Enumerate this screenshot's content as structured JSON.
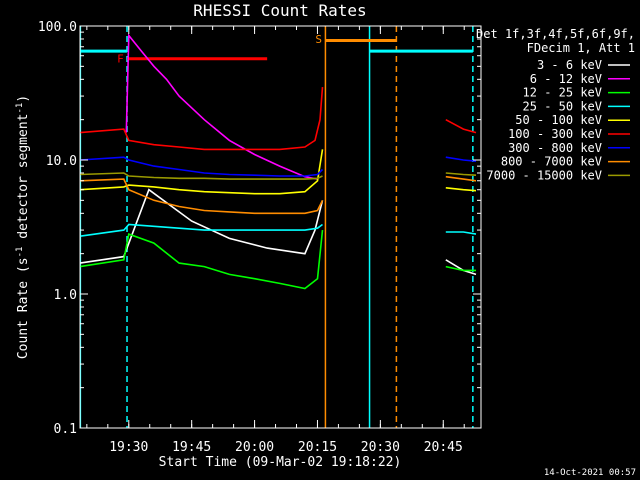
{
  "chart_data": {
    "type": "line",
    "title": "RHESSI Count Rates",
    "xlabel": "Start Time (09-Mar-02 19:18:22)",
    "ylabel": "Count Rate (s",
    "ylabel_sup": "-1",
    "ylabel_tail": " detector segment",
    "ylabel_sup2": "-1",
    "ylabel_end": ")",
    "yscale": "log",
    "ylim": [
      0.1,
      100
    ],
    "xlim": [
      19.3061,
      20.9
    ],
    "xticks": [
      {
        "label": "19:30",
        "value": 19.5
      },
      {
        "label": "19:45",
        "value": 19.75
      },
      {
        "label": "20:00",
        "value": 20.0
      },
      {
        "label": "20:15",
        "value": 20.25
      },
      {
        "label": "20:30",
        "value": 20.5
      },
      {
        "label": "20:45",
        "value": 20.75
      }
    ],
    "yticks": [
      {
        "label": "100.0",
        "value": 100
      },
      {
        "label": "10.0",
        "value": 10
      },
      {
        "label": "1.0",
        "value": 1
      },
      {
        "label": "0.1",
        "value": 0.1
      }
    ],
    "legend_header": [
      "Det 1f,3f,4f,5f,6f,9f,",
      "FDecim 1, Att 1"
    ],
    "legend_position": "right",
    "series": [
      {
        "name": "3 - 6 keV",
        "color": "#ffffff",
        "x": [
          19.306,
          19.48,
          19.58,
          19.75,
          19.9,
          20.05,
          20.2,
          20.24,
          20.27,
          20.28,
          20.76,
          20.83,
          20.88
        ],
        "y": [
          1.7,
          1.9,
          6.0,
          3.5,
          2.6,
          2.2,
          2.0,
          3.0,
          5.0,
          null,
          1.8,
          1.5,
          1.4
        ]
      },
      {
        "name": "6 - 12 keV",
        "color": "#ff00ff",
        "x": [
          19.49,
          19.5,
          19.55,
          19.6,
          19.65,
          19.7,
          19.8,
          19.9,
          20.0,
          20.1,
          20.2,
          20.25
        ],
        "y": [
          16,
          85,
          65,
          50,
          40,
          30,
          20,
          14,
          11,
          9,
          7.5,
          7.2
        ]
      },
      {
        "name": "12 - 25 keV",
        "color": "#00ff00",
        "x": [
          19.306,
          19.48,
          19.5,
          19.6,
          19.7,
          19.8,
          19.9,
          20.0,
          20.1,
          20.2,
          20.25,
          20.27,
          20.28,
          20.76,
          20.83,
          20.88
        ],
        "y": [
          1.6,
          1.8,
          2.8,
          2.4,
          1.7,
          1.6,
          1.4,
          1.3,
          1.2,
          1.1,
          1.3,
          3.0,
          null,
          1.6,
          1.5,
          1.5
        ]
      },
      {
        "name": "25 - 50 keV",
        "color": "#00ffff",
        "x": [
          19.306,
          19.48,
          19.5,
          19.6,
          19.7,
          19.8,
          19.9,
          20.0,
          20.1,
          20.2,
          20.25,
          20.27,
          20.28,
          20.76,
          20.83,
          20.88
        ],
        "y": [
          2.7,
          3.0,
          3.3,
          3.2,
          3.1,
          3.0,
          3.0,
          3.0,
          3.0,
          3.0,
          3.1,
          3.3,
          null,
          2.9,
          2.9,
          2.8
        ]
      },
      {
        "name": "50 - 100 keV",
        "color": "#ffff00",
        "x": [
          19.306,
          19.48,
          19.5,
          19.6,
          19.7,
          19.8,
          19.9,
          20.0,
          20.1,
          20.2,
          20.25,
          20.27,
          20.28,
          20.76,
          20.83,
          20.88
        ],
        "y": [
          6.0,
          6.3,
          6.5,
          6.3,
          6.0,
          5.8,
          5.7,
          5.6,
          5.6,
          5.8,
          7.0,
          12.0,
          null,
          6.2,
          6.0,
          5.9
        ]
      },
      {
        "name": "100 - 300 keV",
        "color": "#ff0000",
        "x": [
          19.306,
          19.48,
          19.5,
          19.6,
          19.7,
          19.8,
          19.9,
          20.0,
          20.1,
          20.2,
          20.24,
          20.26,
          20.27,
          20.28,
          20.76,
          20.83,
          20.88
        ],
        "y": [
          16,
          17,
          14,
          13,
          12.5,
          12,
          12,
          12,
          12,
          12.5,
          14,
          20,
          35,
          null,
          20,
          17,
          16
        ]
      },
      {
        "name": "300 - 800 keV",
        "color": "#0000ff",
        "x": [
          19.306,
          19.48,
          19.5,
          19.6,
          19.7,
          19.8,
          19.9,
          20.0,
          20.1,
          20.2,
          20.25,
          20.27,
          20.28,
          20.76,
          20.83,
          20.88
        ],
        "y": [
          10.0,
          10.5,
          10.0,
          9.0,
          8.5,
          8.0,
          7.8,
          7.7,
          7.6,
          7.6,
          7.8,
          8.5,
          null,
          10.5,
          10.0,
          9.8
        ]
      },
      {
        "name": "800 - 7000 keV",
        "color": "#ff8c00",
        "x": [
          19.306,
          19.48,
          19.5,
          19.6,
          19.7,
          19.8,
          19.9,
          20.0,
          20.1,
          20.2,
          20.25,
          20.27,
          20.28,
          20.76,
          20.83,
          20.88
        ],
        "y": [
          7.0,
          7.2,
          6.0,
          5.0,
          4.5,
          4.2,
          4.1,
          4.0,
          4.0,
          4.0,
          4.2,
          5.0,
          null,
          7.5,
          7.2,
          7.0
        ]
      },
      {
        "name": "7000 - 15000 keV",
        "color": "#9a9a00",
        "x": [
          19.306,
          19.48,
          19.5,
          19.6,
          19.7,
          19.8,
          19.9,
          20.0,
          20.1,
          20.2,
          20.25,
          20.27,
          20.28,
          20.76,
          20.83,
          20.88
        ],
        "y": [
          7.8,
          8.0,
          7.6,
          7.4,
          7.3,
          7.3,
          7.2,
          7.2,
          7.2,
          7.2,
          7.3,
          7.6,
          null,
          8.0,
          7.8,
          7.7
        ]
      }
    ],
    "vlines": [
      {
        "x": 19.3076,
        "color": "#00ffff",
        "dashed": false
      },
      {
        "x": 19.493,
        "color": "#00ffff",
        "dashed": true
      },
      {
        "x": 20.2816,
        "color": "#ff8c00",
        "dashed": false
      },
      {
        "x": 20.457,
        "color": "#00ffff",
        "dashed": false
      },
      {
        "x": 20.5637,
        "color": "#ff8c00",
        "dashed": true
      },
      {
        "x": 20.8676,
        "color": "#00ffff",
        "dashed": true
      }
    ],
    "hbars": [
      {
        "x0": 19.3076,
        "x1": 19.493,
        "y": 65,
        "color": "#00ffff"
      },
      {
        "x0": 20.457,
        "x1": 20.8676,
        "y": 65,
        "color": "#00ffff"
      },
      {
        "x0": 19.493,
        "x1": 20.05,
        "y": 57,
        "color": "#ff0000"
      },
      {
        "x0": 20.2816,
        "x1": 20.5637,
        "y": 78,
        "color": "#ff8c00"
      }
    ],
    "annotations": [
      {
        "text": "F",
        "x": 19.467,
        "y": 57,
        "color": "#ff0000"
      },
      {
        "text": "S",
        "x": 20.255,
        "y": 80,
        "color": "#ff8c00"
      }
    ]
  },
  "footer_timestamp": "14-Oct-2021 00:57"
}
